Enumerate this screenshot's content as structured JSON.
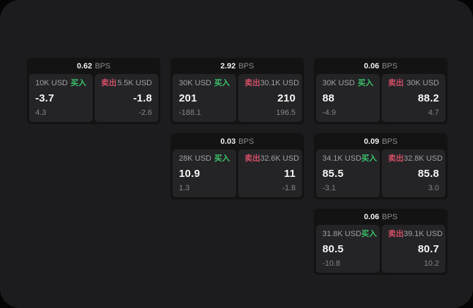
{
  "labels": {
    "buy": "买入",
    "sell": "卖出",
    "bps_unit": "BPS"
  },
  "colors": {
    "page_bg": "#1c1c1e",
    "card_bg": "#131314",
    "panel_bg": "#242427",
    "buy_green": "#3cc168",
    "sell_red": "#cf4f66",
    "value_white": "#f5f5f5",
    "muted_gray": "#85858a"
  },
  "cards": [
    {
      "bps": "0.62",
      "row": 1,
      "col": 1,
      "buy": {
        "amount": "10K USD",
        "value": "-3.7",
        "delta": "4.3"
      },
      "sell": {
        "amount": "5.5K USD",
        "value": "-1.8",
        "delta": "-2.6"
      }
    },
    {
      "bps": "2.92",
      "row": 1,
      "col": 2,
      "buy": {
        "amount": "30K USD",
        "value": "201",
        "delta": "-188.1"
      },
      "sell": {
        "amount": "30.1K USD",
        "value": "210",
        "delta": "196.5"
      }
    },
    {
      "bps": "0.06",
      "row": 1,
      "col": 3,
      "buy": {
        "amount": "30K USD",
        "value": "88",
        "delta": "-4.9"
      },
      "sell": {
        "amount": "30K USD",
        "value": "88.2",
        "delta": "4.7"
      }
    },
    {
      "bps": "0.03",
      "row": 2,
      "col": 2,
      "buy": {
        "amount": "28K USD",
        "value": "10.9",
        "delta": "1.3"
      },
      "sell": {
        "amount": "32.6K USD",
        "value": "11",
        "delta": "-1.8"
      }
    },
    {
      "bps": "0.09",
      "row": 2,
      "col": 3,
      "buy": {
        "amount": "34.1K USD",
        "value": "85.5",
        "delta": "-3.1"
      },
      "sell": {
        "amount": "32.8K USD",
        "value": "85.8",
        "delta": "3.0"
      }
    },
    {
      "bps": "0.06",
      "row": 3,
      "col": 3,
      "buy": {
        "amount": "31.8K USD",
        "value": "80.5",
        "delta": "-10.8"
      },
      "sell": {
        "amount": "39.1K USD",
        "value": "80.7",
        "delta": "10.2"
      }
    }
  ]
}
